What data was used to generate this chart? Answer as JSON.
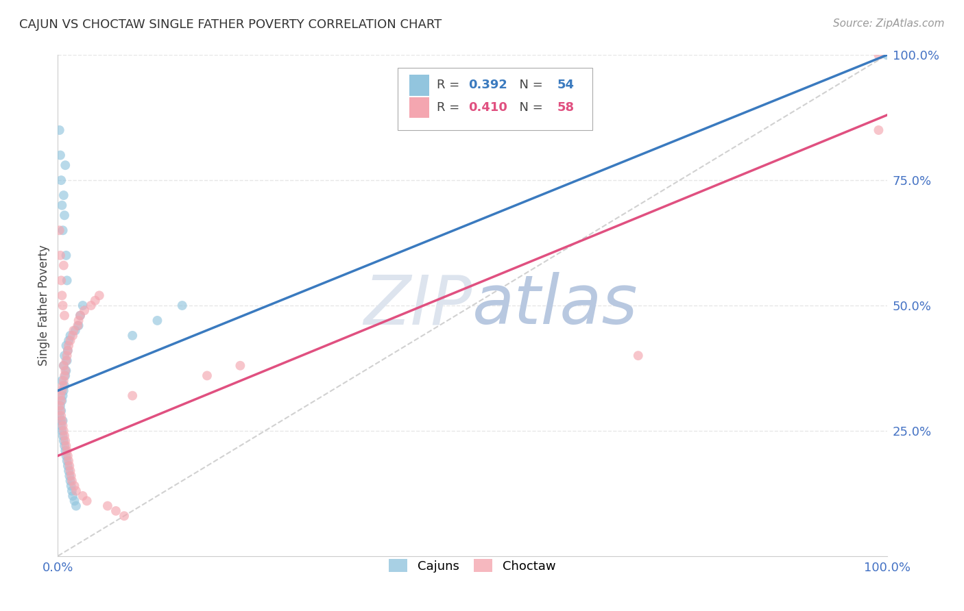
{
  "title": "CAJUN VS CHOCTAW SINGLE FATHER POVERTY CORRELATION CHART",
  "source": "Source: ZipAtlas.com",
  "ylabel": "Single Father Poverty",
  "cajun_R": 0.392,
  "cajun_N": 54,
  "choctaw_R": 0.41,
  "choctaw_N": 58,
  "cajun_color": "#92c5de",
  "choctaw_color": "#f4a6b0",
  "cajun_line_color": "#3a7abf",
  "choctaw_line_color": "#e05080",
  "diagonal_color": "#cccccc",
  "axis_tick_color": "#4472c4",
  "grid_color": "#e0e0e0",
  "background_color": "#ffffff",
  "cajun_x": [
    0.002,
    0.003,
    0.003,
    0.004,
    0.004,
    0.005,
    0.005,
    0.005,
    0.006,
    0.006,
    0.006,
    0.007,
    0.007,
    0.007,
    0.008,
    0.008,
    0.008,
    0.009,
    0.009,
    0.01,
    0.01,
    0.01,
    0.011,
    0.011,
    0.012,
    0.012,
    0.013,
    0.013,
    0.014,
    0.015,
    0.015,
    0.016,
    0.017,
    0.018,
    0.02,
    0.021,
    0.022,
    0.025,
    0.027,
    0.03,
    0.002,
    0.003,
    0.004,
    0.005,
    0.006,
    0.007,
    0.008,
    0.009,
    0.01,
    0.011,
    0.09,
    0.12,
    0.15,
    1.0
  ],
  "cajun_y": [
    0.28,
    0.27,
    0.3,
    0.26,
    0.29,
    0.25,
    0.31,
    0.35,
    0.24,
    0.32,
    0.27,
    0.23,
    0.33,
    0.38,
    0.22,
    0.34,
    0.4,
    0.21,
    0.36,
    0.2,
    0.37,
    0.42,
    0.19,
    0.39,
    0.18,
    0.41,
    0.17,
    0.43,
    0.16,
    0.15,
    0.44,
    0.14,
    0.13,
    0.12,
    0.11,
    0.45,
    0.1,
    0.46,
    0.48,
    0.5,
    0.85,
    0.8,
    0.75,
    0.7,
    0.65,
    0.72,
    0.68,
    0.78,
    0.6,
    0.55,
    0.44,
    0.47,
    0.5,
    1.0
  ],
  "choctaw_x": [
    0.002,
    0.003,
    0.003,
    0.004,
    0.004,
    0.005,
    0.005,
    0.006,
    0.006,
    0.007,
    0.007,
    0.007,
    0.008,
    0.008,
    0.009,
    0.009,
    0.01,
    0.01,
    0.011,
    0.011,
    0.012,
    0.012,
    0.013,
    0.013,
    0.014,
    0.015,
    0.015,
    0.016,
    0.017,
    0.018,
    0.019,
    0.02,
    0.022,
    0.024,
    0.025,
    0.027,
    0.03,
    0.032,
    0.035,
    0.04,
    0.045,
    0.05,
    0.06,
    0.07,
    0.08,
    0.002,
    0.003,
    0.004,
    0.005,
    0.006,
    0.007,
    0.008,
    0.09,
    0.18,
    0.22,
    0.7,
    0.99,
    0.99
  ],
  "choctaw_y": [
    0.3,
    0.29,
    0.32,
    0.28,
    0.31,
    0.27,
    0.33,
    0.26,
    0.34,
    0.25,
    0.35,
    0.38,
    0.24,
    0.36,
    0.23,
    0.37,
    0.22,
    0.39,
    0.21,
    0.4,
    0.2,
    0.41,
    0.19,
    0.42,
    0.18,
    0.17,
    0.43,
    0.16,
    0.15,
    0.44,
    0.45,
    0.14,
    0.13,
    0.46,
    0.47,
    0.48,
    0.12,
    0.49,
    0.11,
    0.5,
    0.51,
    0.52,
    0.1,
    0.09,
    0.08,
    0.65,
    0.6,
    0.55,
    0.52,
    0.5,
    0.58,
    0.48,
    0.32,
    0.36,
    0.38,
    0.4,
    0.85,
    1.0
  ],
  "cajun_line_x0": 0.0,
  "cajun_line_y0": 0.33,
  "cajun_line_x1": 1.0,
  "cajun_line_y1": 1.0,
  "choctaw_line_x0": 0.0,
  "choctaw_line_y0": 0.2,
  "choctaw_line_x1": 1.0,
  "choctaw_line_y1": 0.88,
  "xlim": [
    0.0,
    1.0
  ],
  "ylim": [
    0.0,
    1.0
  ],
  "ytick_vals": [
    0.25,
    0.5,
    0.75,
    1.0
  ],
  "ytick_labels": [
    "25.0%",
    "50.0%",
    "75.0%",
    "100.0%"
  ],
  "xtick_vals": [
    0.0,
    0.25,
    0.5,
    0.75,
    1.0
  ],
  "xtick_labels": [
    "0.0%",
    "",
    "",
    "",
    "100.0%"
  ]
}
